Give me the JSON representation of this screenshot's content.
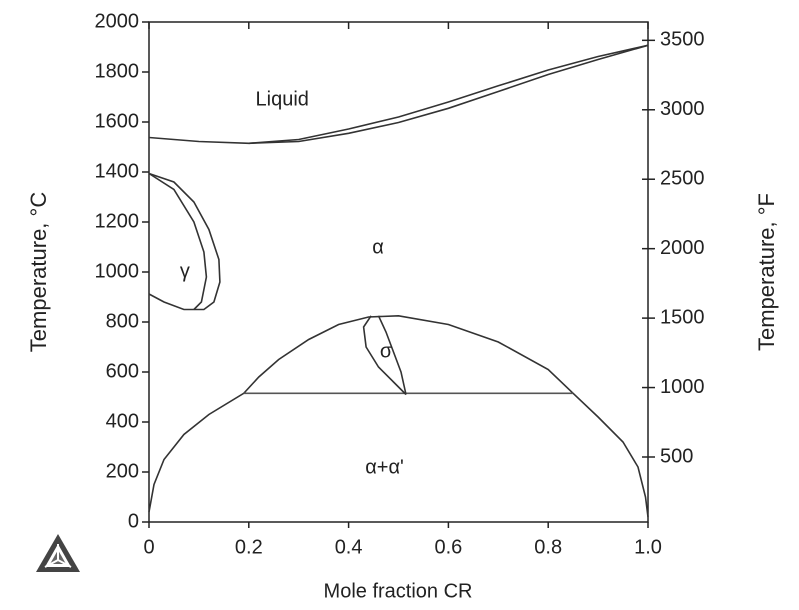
{
  "chart_data": {
    "type": "line",
    "xlabel": "Mole fraction CR",
    "ylabel": "Temperature, °C",
    "y2label": "Temperature, °F",
    "xlim": [
      0,
      1
    ],
    "xticks": [
      0,
      0.2,
      0.4,
      0.6,
      0.8,
      {
        "value": 1,
        "label": "1.0"
      }
    ],
    "ylim": [
      0,
      2000
    ],
    "yticks": [
      0,
      200,
      400,
      600,
      800,
      1000,
      1200,
      1400,
      1600,
      1800,
      2000
    ],
    "y2lim": [
      32,
      3632
    ],
    "y2ticks": [
      500,
      1000,
      1500,
      2000,
      2500,
      3000,
      3500
    ],
    "series": [
      {
        "color": "#333333",
        "x": [
          0,
          0.1,
          0.2,
          0.3,
          0.4,
          0.5,
          0.6,
          0.7,
          0.8,
          0.9,
          1
        ],
        "values": [
          1538,
          1522,
          1515,
          1530,
          1572,
          1620,
          1680,
          1745,
          1808,
          1862,
          1907
        ]
      },
      {
        "color": "#333333",
        "x": [
          0.2,
          0.3,
          0.4,
          0.5,
          0.6,
          0.7,
          0.8,
          0.9,
          1
        ],
        "values": [
          1515,
          1522,
          1555,
          1598,
          1655,
          1722,
          1790,
          1850,
          1907
        ]
      },
      {
        "color": "#333333",
        "x": [
          0,
          0.05,
          0.09,
          0.12,
          0.14,
          0.142,
          0.13,
          0.11,
          0.07,
          0.03,
          0
        ],
        "values": [
          1394,
          1360,
          1280,
          1170,
          1050,
          960,
          880,
          850,
          850,
          880,
          912
        ]
      },
      {
        "color": "#333333",
        "x": [
          0,
          0.05,
          0.09,
          0.11,
          0.115,
          0.105,
          0.09
        ],
        "values": [
          1394,
          1330,
          1200,
          1080,
          980,
          880,
          850
        ]
      },
      {
        "color": "#333333",
        "x": [
          0,
          0.01,
          0.03,
          0.07,
          0.12,
          0.19,
          0.22,
          0.26,
          0.32,
          0.38,
          0.44,
          0.5,
          0.6,
          0.7,
          0.8,
          0.85,
          0.9,
          0.95,
          0.98,
          0.995,
          1
        ],
        "values": [
          40,
          150,
          250,
          350,
          430,
          515,
          580,
          650,
          730,
          790,
          820,
          825,
          790,
          720,
          610,
          515,
          420,
          320,
          220,
          100,
          20
        ]
      },
      {
        "color": "#555555",
        "x": [
          0.19,
          0.85
        ],
        "values": [
          515,
          515
        ]
      },
      {
        "color": "#333333",
        "x": [
          0.445,
          0.43,
          0.435,
          0.46,
          0.49,
          0.515
        ],
        "values": [
          825,
          780,
          700,
          620,
          560,
          510
        ]
      },
      {
        "color": "#333333",
        "x": [
          0.46,
          0.475,
          0.49,
          0.505,
          0.515
        ],
        "values": [
          825,
          760,
          680,
          600,
          510
        ]
      }
    ],
    "annotations": [
      {
        "text": "Liquid",
        "x": 0.267,
        "y": 1688
      },
      {
        "text": "α",
        "x": 0.459,
        "y": 1096
      },
      {
        "text": "γ",
        "x": 0.072,
        "y": 1000
      },
      {
        "text": "σ",
        "x": 0.475,
        "y": 680
      },
      {
        "text": "α+α'",
        "x": 0.472,
        "y": 216
      }
    ]
  }
}
